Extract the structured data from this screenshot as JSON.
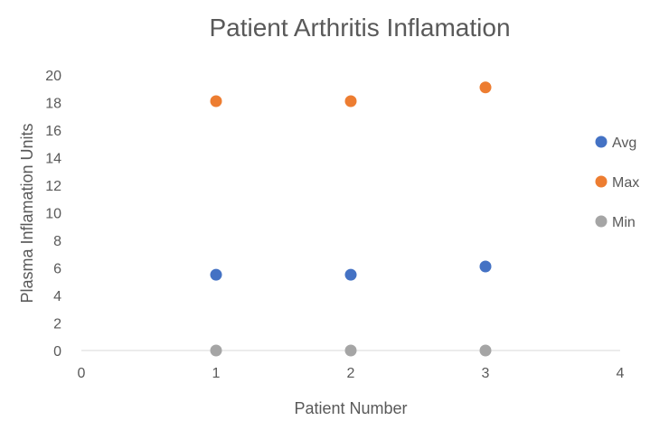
{
  "chart_data": {
    "type": "scatter",
    "title": "Patient Arthritis Inflamation",
    "xlabel": "Patient Number",
    "ylabel": "Plasma Inflamation Units",
    "xlim": [
      0,
      4
    ],
    "ylim": [
      0,
      20
    ],
    "x_ticks": [
      "0",
      "1",
      "2",
      "3",
      "4"
    ],
    "y_ticks": [
      "0",
      "2",
      "4",
      "6",
      "8",
      "10",
      "12",
      "14",
      "16",
      "18",
      "20"
    ],
    "grid": false,
    "legend_position": "right",
    "series": [
      {
        "name": "Avg",
        "color": "#4472C4",
        "x": [
          1,
          2,
          3
        ],
        "y": [
          5.5,
          5.5,
          6.1
        ]
      },
      {
        "name": "Max",
        "color": "#ED7D31",
        "x": [
          1,
          2,
          3
        ],
        "y": [
          18.1,
          18.1,
          19.1
        ]
      },
      {
        "name": "Min",
        "color": "#A5A5A5",
        "x": [
          1,
          2,
          3
        ],
        "y": [
          0,
          0,
          0
        ]
      }
    ]
  }
}
